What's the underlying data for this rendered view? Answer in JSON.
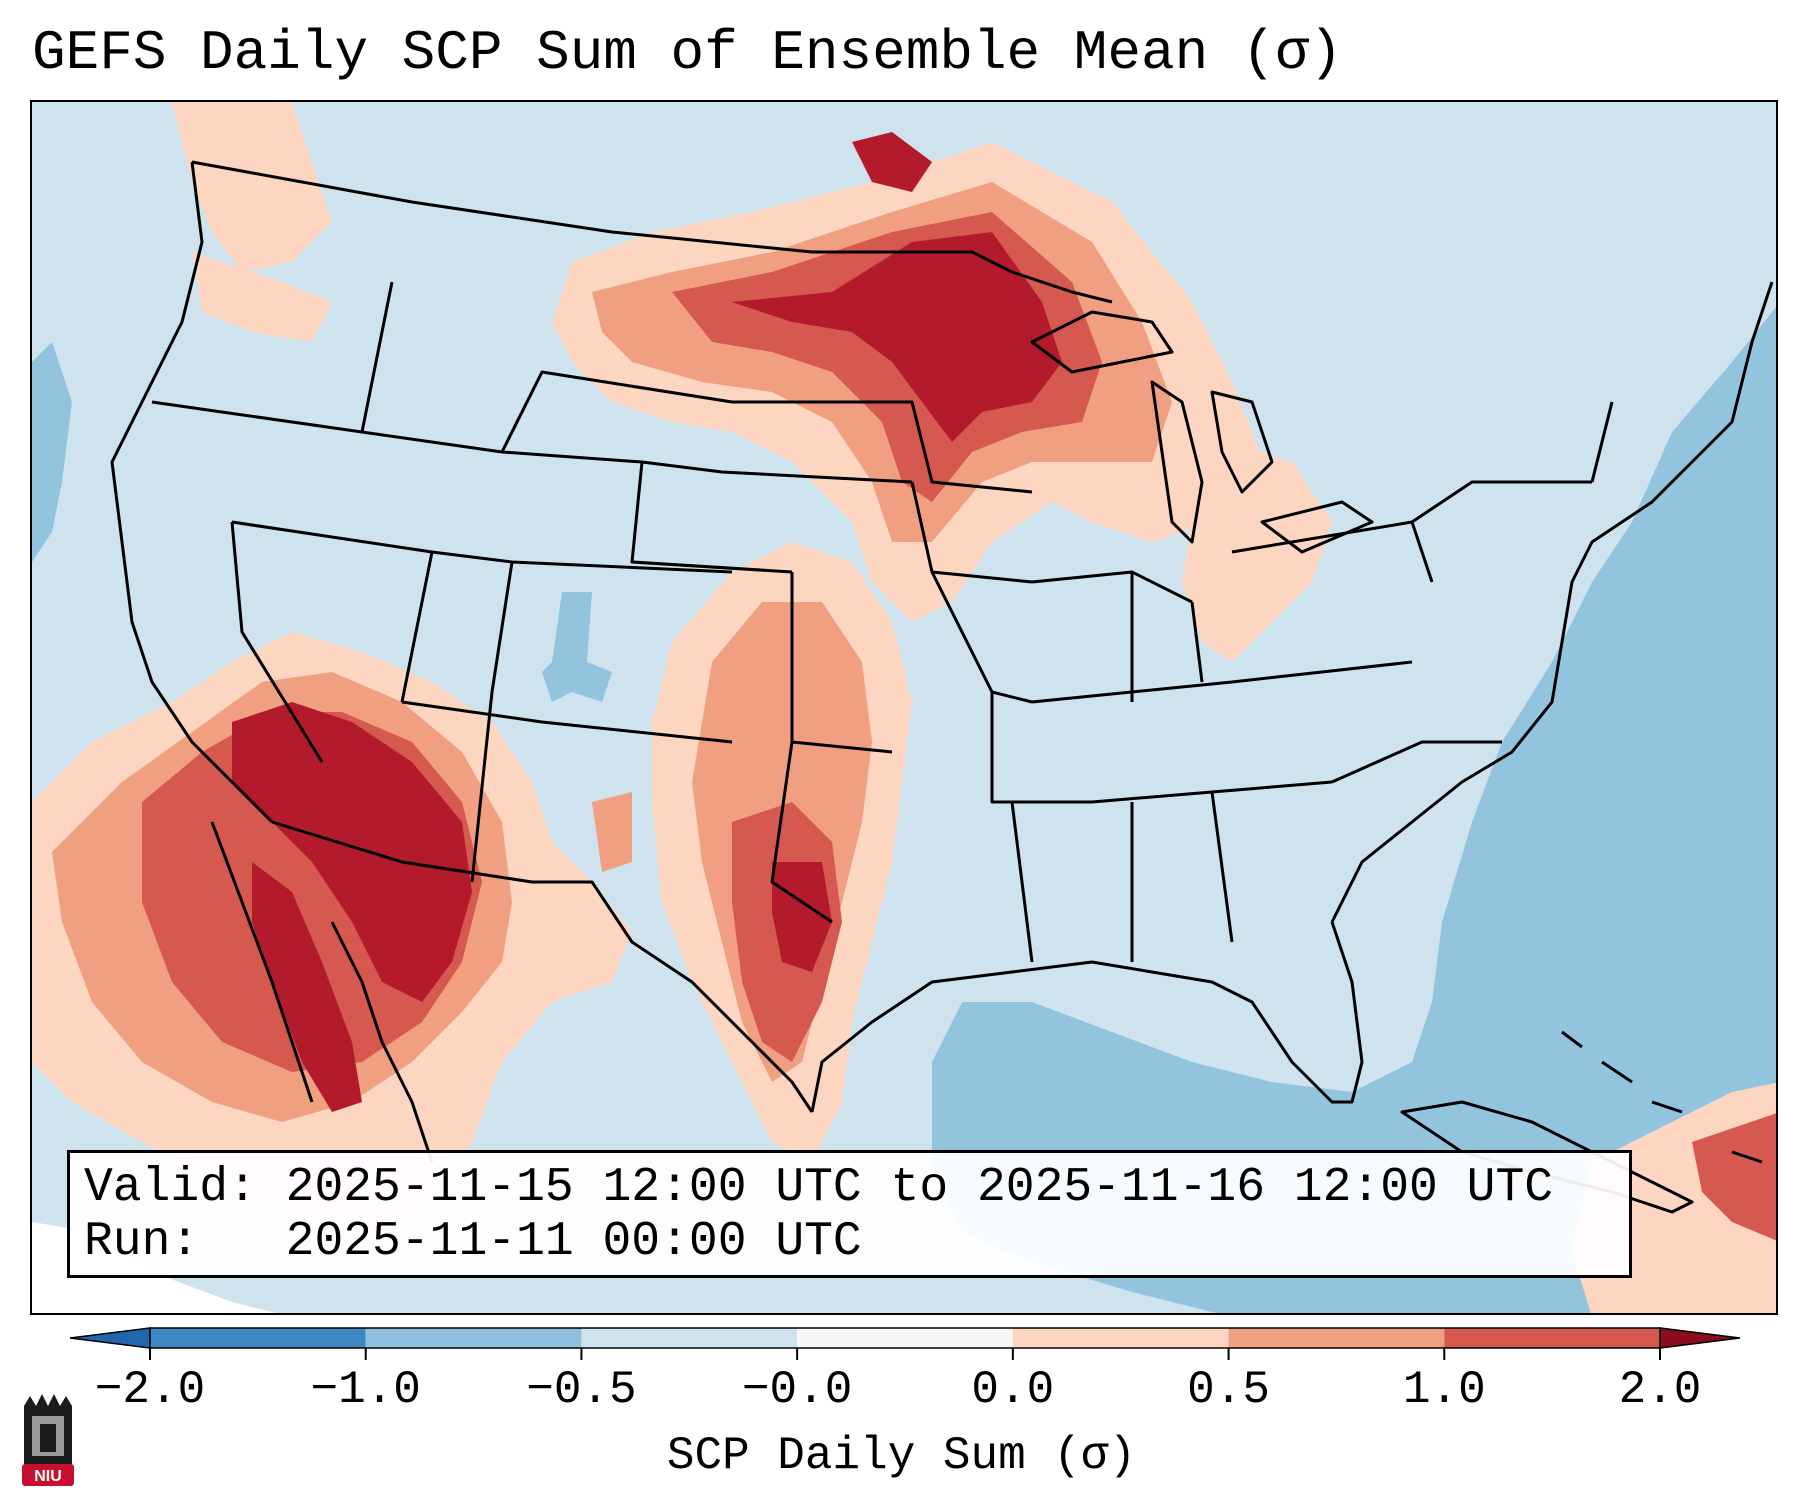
{
  "title": "GEFS Daily SCP Sum of Ensemble Mean (σ)",
  "info": {
    "valid_label": "Valid:",
    "valid_value": "2025-11-15 12:00 UTC to 2025-11-16 12:00 UTC",
    "run_label": "Run:",
    "run_value": "2025-11-11 00:00 UTC"
  },
  "colorbar": {
    "label": "SCP Daily Sum (σ)",
    "ticks": [
      "−2.0",
      "−1.0",
      "−0.5",
      "−0.0",
      "0.0",
      "0.5",
      "1.0",
      "2.0"
    ],
    "colors": [
      "#3f86c4",
      "#8fc1de",
      "#cfe3ef",
      "#f7f7f7",
      "#fcd6c1",
      "#f0a081",
      "#d6594f",
      "#b31b2c"
    ],
    "extend_low_color": "#2166ac",
    "extend_high_color": "#8b0d1e"
  },
  "logo": {
    "text": "NIU",
    "color": "#c8102e"
  },
  "map": {
    "background_color": "#cfe3ef",
    "ocean_negative_color": "#93c4de",
    "positive_light_color": "#fcd6c1",
    "positive_medium_color": "#f0a081",
    "positive_strong_color": "#d6594f",
    "positive_max_color": "#b31b2c"
  }
}
